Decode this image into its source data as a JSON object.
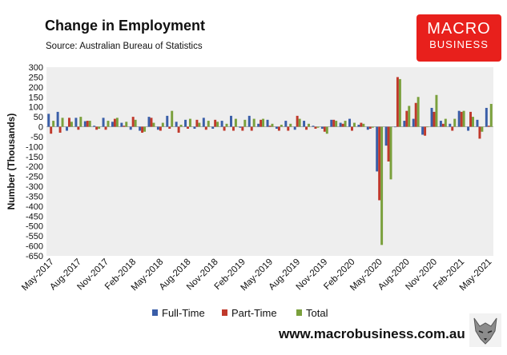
{
  "title": "Change in Employment",
  "source": "Source: Australian Bureau of Statistics",
  "logo": {
    "line1": "MACRO",
    "line2": "BUSINESS",
    "color": "#e8201c"
  },
  "website": "www.macrobusiness.com.au",
  "chart_data": {
    "type": "bar",
    "ylabel": "Number (Thousands)",
    "ylim": [
      -650,
      300
    ],
    "yticks": [
      300,
      250,
      200,
      150,
      100,
      50,
      0,
      -50,
      -100,
      -150,
      -200,
      -250,
      -300,
      -350,
      -400,
      -450,
      -500,
      -550,
      -600,
      -650
    ],
    "xtick_labels": [
      "May-2017",
      "Aug-2017",
      "Nov-2017",
      "Feb-2018",
      "May-2018",
      "Aug-2018",
      "Nov-2018",
      "Feb-2019",
      "May-2019",
      "Aug-2019",
      "Nov-2019",
      "Feb-2020",
      "May-2020",
      "Aug-2020",
      "Nov-2020",
      "Feb-2021",
      "May-2021"
    ],
    "legend_position": "bottom",
    "categories": [
      "May-2017",
      "Jun-2017",
      "Jul-2017",
      "Aug-2017",
      "Sep-2017",
      "Oct-2017",
      "Nov-2017",
      "Dec-2017",
      "Jan-2018",
      "Feb-2018",
      "Mar-2018",
      "Apr-2018",
      "May-2018",
      "Jun-2018",
      "Jul-2018",
      "Aug-2018",
      "Sep-2018",
      "Oct-2018",
      "Nov-2018",
      "Dec-2018",
      "Jan-2019",
      "Feb-2019",
      "Mar-2019",
      "Apr-2019",
      "May-2019",
      "Jun-2019",
      "Jul-2019",
      "Aug-2019",
      "Sep-2019",
      "Oct-2019",
      "Nov-2019",
      "Dec-2019",
      "Jan-2020",
      "Feb-2020",
      "Mar-2020",
      "Apr-2020",
      "May-2020",
      "Jun-2020",
      "Jul-2020",
      "Aug-2020",
      "Sep-2020",
      "Oct-2020",
      "Nov-2020",
      "Dec-2020",
      "Jan-2021",
      "Feb-2021",
      "Mar-2021",
      "Apr-2021",
      "May-2021"
    ],
    "series": [
      {
        "name": "Full-Time",
        "color": "#3a5ea8",
        "values": [
          65,
          75,
          -20,
          45,
          28,
          5,
          45,
          25,
          20,
          -15,
          -20,
          50,
          -15,
          55,
          25,
          35,
          -10,
          45,
          -10,
          30,
          55,
          -5,
          55,
          15,
          35,
          -10,
          30,
          -15,
          30,
          5,
          -10,
          35,
          20,
          40,
          10,
          -15,
          -225,
          -95,
          0,
          30,
          40,
          -40,
          95,
          30,
          15,
          80,
          -20,
          35,
          95
        ]
      },
      {
        "name": "Part-Time",
        "color": "#c0392b",
        "values": [
          -35,
          -30,
          45,
          -15,
          30,
          -15,
          -15,
          40,
          5,
          50,
          -30,
          45,
          -20,
          -10,
          -30,
          -10,
          35,
          -15,
          35,
          -20,
          -20,
          -20,
          -20,
          35,
          5,
          -20,
          -20,
          55,
          -15,
          -10,
          -25,
          35,
          15,
          -20,
          20,
          -10,
          -370,
          -175,
          250,
          80,
          120,
          -45,
          75,
          15,
          -20,
          75,
          75,
          -60,
          5
        ]
      },
      {
        "name": "Total",
        "color": "#7aa03c",
        "values": [
          30,
          45,
          25,
          50,
          30,
          -10,
          30,
          45,
          25,
          35,
          -25,
          20,
          20,
          80,
          10,
          40,
          20,
          30,
          25,
          15,
          40,
          35,
          40,
          40,
          15,
          10,
          15,
          40,
          15,
          -5,
          -35,
          30,
          30,
          20,
          15,
          -5,
          -595,
          -265,
          240,
          105,
          150,
          0,
          160,
          40,
          40,
          80,
          50,
          -25,
          115
        ]
      }
    ]
  }
}
